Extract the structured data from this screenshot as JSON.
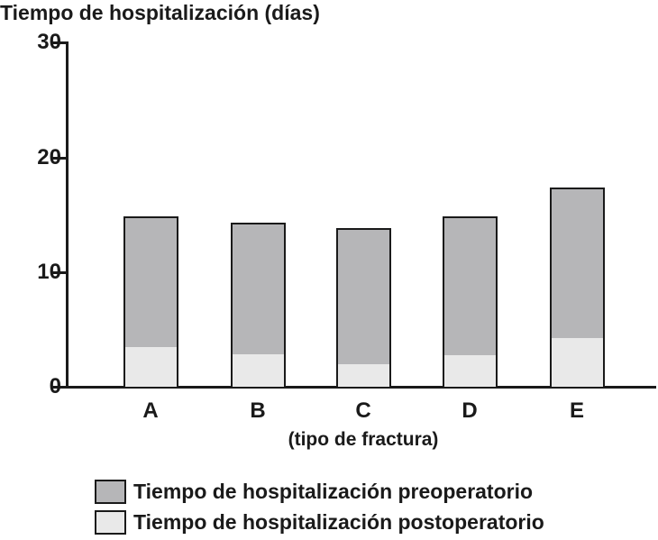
{
  "figure": {
    "title": "Tiempo de hospitalización (días)"
  },
  "chart_data": {
    "type": "bar",
    "stacked": true,
    "title": "Tiempo de hospitalización (días)",
    "categories": [
      "A",
      "B",
      "C",
      "D",
      "E"
    ],
    "series": [
      {
        "name": "Tiempo de hospitalización preoperatorio",
        "color": "#b6b6b8",
        "stack_position": "top",
        "values": [
          11.3,
          11.4,
          11.8,
          12.0,
          13.0
        ]
      },
      {
        "name": "Tiempo de hospitalización postoperatorio",
        "color": "#e9e9e9",
        "stack_position": "bottom",
        "values": [
          3.7,
          3.1,
          2.2,
          3.0,
          4.5
        ]
      }
    ],
    "totals": [
      15.0,
      14.5,
      14.0,
      15.0,
      17.5
    ],
    "xlabel": "(tipo de fractura)",
    "ylabel": "",
    "ylim": [
      0,
      30
    ],
    "yticks": [
      0,
      10,
      20,
      30
    ],
    "grid": false,
    "legend_position": "bottom",
    "axis_color": "#1a1a1a",
    "text_color": "#1a1a1a",
    "background_color": "#ffffff"
  }
}
